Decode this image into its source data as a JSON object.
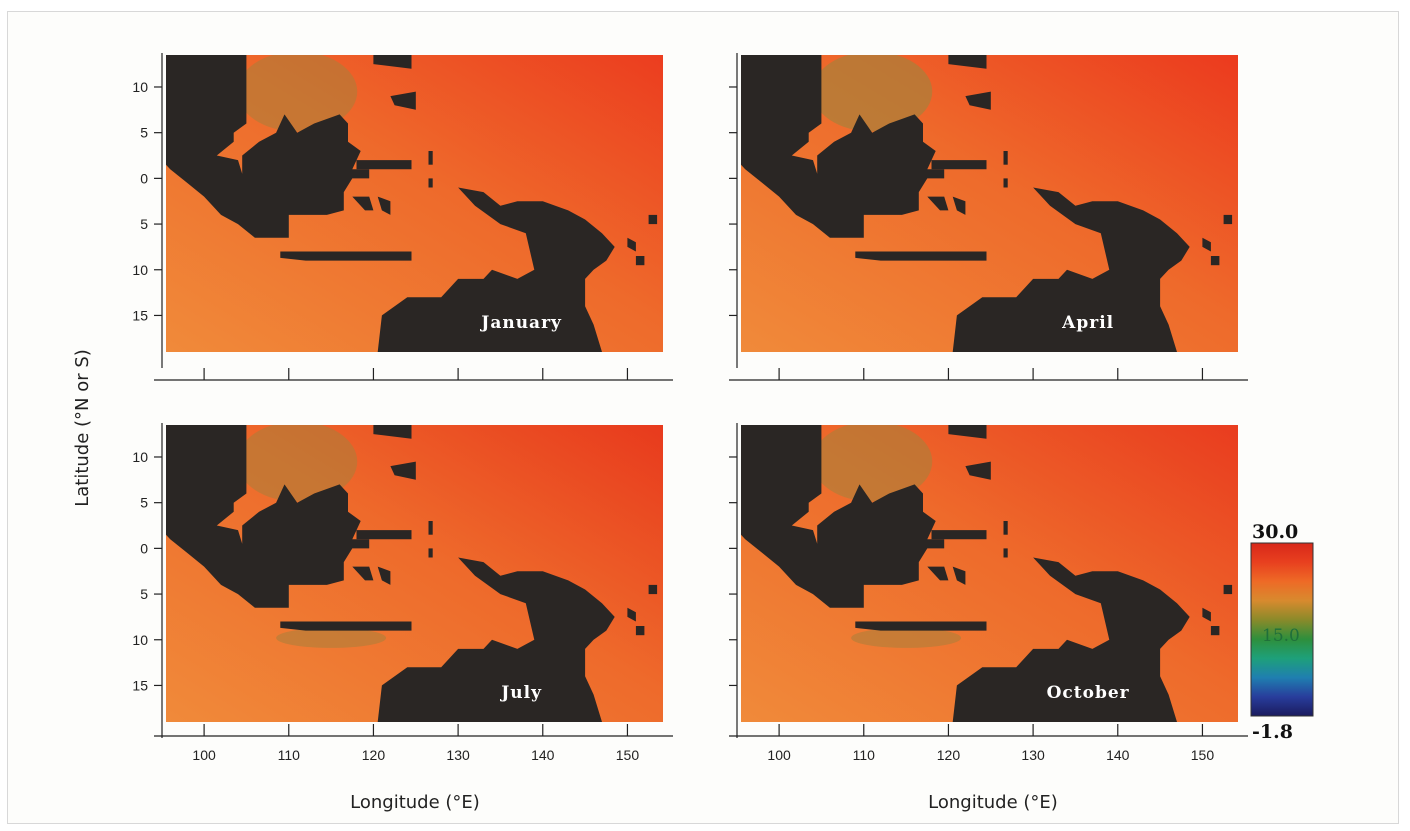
{
  "chart_data": {
    "type": "heatmap",
    "description_units": "sea surface temperature, degrees C",
    "panels": [
      {
        "title": "January",
        "warm_pool_east": "#ec3d1f",
        "cool_patch": 0.55
      },
      {
        "title": "April",
        "warm_pool_east": "#ec3a1e",
        "cool_patch": 0.7
      },
      {
        "title": "July",
        "warm_pool_east": "#e83a1d",
        "cool_patch": 0.55
      },
      {
        "title": "October",
        "warm_pool_east": "#e93c1f",
        "cool_patch": 0.6
      }
    ],
    "x": {
      "label": "Longitude (°E)",
      "ticks": [
        100,
        110,
        120,
        130,
        140,
        150
      ],
      "tick_labels": [
        "100",
        "110",
        "120",
        "130",
        "140",
        "150"
      ],
      "range": [
        95.5,
        154.2
      ]
    },
    "y": {
      "label": "Latitude (°N or S)",
      "ticks": [
        10,
        5,
        0,
        -5,
        -10,
        -15
      ],
      "tick_labels": [
        "10",
        "5",
        "0",
        "5",
        "10",
        "15"
      ],
      "range": [
        -19,
        13.5
      ]
    },
    "colorbar": {
      "max_label": "30.0",
      "mid_label": "15.0",
      "min_label": "-1.8",
      "range": [
        -1.8,
        30.0
      ],
      "colors": [
        "#1b1b5e",
        "#283d9c",
        "#1f7fb0",
        "#1ea07a",
        "#2e8f3c",
        "#8a8a2a",
        "#d88a2e",
        "#ee6a26",
        "#e8401f",
        "#d8281a"
      ]
    },
    "land_color": "#2a2624",
    "ocean_base": "#ef7a2e",
    "cool_color": "#a8803a"
  }
}
